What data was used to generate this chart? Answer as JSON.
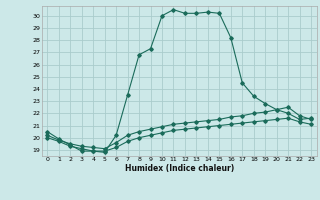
{
  "xlabel": "Humidex (Indice chaleur)",
  "bg_color": "#cce8e8",
  "grid_color": "#aacccc",
  "line_color": "#1a6b5a",
  "xlim": [
    -0.5,
    23.5
  ],
  "ylim": [
    18.5,
    30.8
  ],
  "xticks": [
    0,
    1,
    2,
    3,
    4,
    5,
    6,
    7,
    8,
    9,
    10,
    11,
    12,
    13,
    14,
    15,
    16,
    17,
    18,
    19,
    20,
    21,
    22,
    23
  ],
  "yticks": [
    19,
    20,
    21,
    22,
    23,
    24,
    25,
    26,
    27,
    28,
    29,
    30
  ],
  "curve1_x": [
    0,
    1,
    2,
    3,
    4,
    5,
    6,
    7,
    8,
    9,
    10,
    11,
    12,
    13,
    14,
    15,
    16,
    17,
    18,
    19,
    20,
    21,
    22,
    23
  ],
  "curve1_y": [
    20.5,
    19.9,
    19.4,
    18.9,
    18.9,
    18.8,
    20.2,
    23.5,
    26.8,
    27.3,
    30.0,
    30.5,
    30.2,
    30.2,
    30.3,
    30.2,
    28.2,
    24.5,
    23.4,
    22.8,
    22.3,
    22.0,
    21.5,
    21.6
  ],
  "curve2_x": [
    0,
    1,
    2,
    3,
    4,
    5,
    6,
    7,
    8,
    9,
    10,
    11,
    12,
    13,
    14,
    15,
    16,
    17,
    18,
    19,
    20,
    21,
    22,
    23
  ],
  "curve2_y": [
    20.2,
    19.8,
    19.5,
    19.3,
    19.2,
    19.1,
    19.6,
    20.2,
    20.5,
    20.7,
    20.9,
    21.1,
    21.2,
    21.3,
    21.4,
    21.5,
    21.7,
    21.8,
    22.0,
    22.1,
    22.3,
    22.5,
    21.8,
    21.5
  ],
  "curve3_x": [
    0,
    1,
    2,
    3,
    4,
    5,
    6,
    7,
    8,
    9,
    10,
    11,
    12,
    13,
    14,
    15,
    16,
    17,
    18,
    19,
    20,
    21,
    22,
    23
  ],
  "curve3_y": [
    20.0,
    19.7,
    19.3,
    19.1,
    18.9,
    18.9,
    19.2,
    19.7,
    20.0,
    20.2,
    20.4,
    20.6,
    20.7,
    20.8,
    20.9,
    21.0,
    21.1,
    21.2,
    21.3,
    21.4,
    21.5,
    21.6,
    21.3,
    21.1
  ]
}
